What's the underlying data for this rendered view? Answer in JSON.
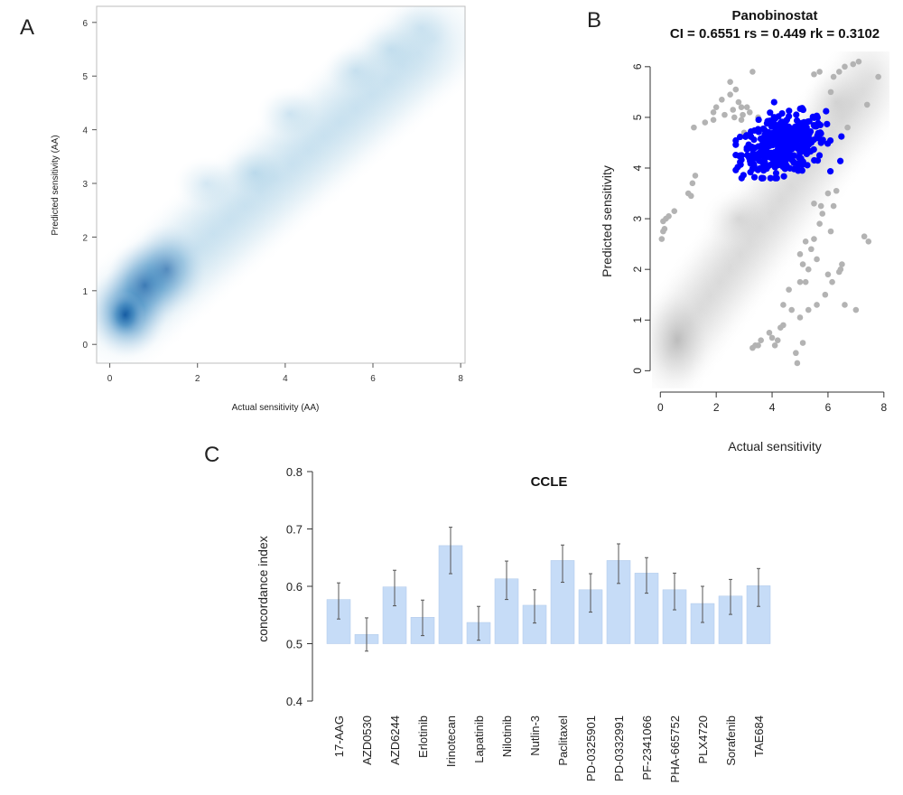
{
  "panels": {
    "a": {
      "letter": "A"
    },
    "b": {
      "letter": "B"
    },
    "c": {
      "letter": "C"
    }
  },
  "colors": {
    "density_blue": "#08519c",
    "blue_points": "#0000ff",
    "grey_points": "#b3b3b3",
    "bar_fill": "#c6dcf7",
    "error_bar": "#555555"
  },
  "chart_data": [
    {
      "id": "A",
      "type": "heatmap",
      "title": "",
      "xlabel": "Actual sensitivity (AA)",
      "ylabel": "Predicted sensitivity (AA)",
      "xlim": [
        -0.3,
        8.1
      ],
      "ylim": [
        -0.35,
        6.3
      ],
      "x_ticks": [
        0,
        2,
        4,
        6,
        8
      ],
      "y_ticks": [
        0,
        1,
        2,
        3,
        4,
        5,
        6
      ],
      "density_centers": [
        {
          "x": 0.4,
          "y": 0.6,
          "weight": 1.0
        },
        {
          "x": 0.8,
          "y": 1.1,
          "weight": 0.75
        },
        {
          "x": 1.3,
          "y": 1.4,
          "weight": 0.5
        },
        {
          "x": 2.2,
          "y": 3.0,
          "weight": 0.3
        },
        {
          "x": 3.3,
          "y": 3.2,
          "weight": 0.35
        },
        {
          "x": 4.1,
          "y": 4.3,
          "weight": 0.35
        },
        {
          "x": 5.6,
          "y": 5.1,
          "weight": 0.3
        },
        {
          "x": 6.4,
          "y": 5.5,
          "weight": 0.25
        },
        {
          "x": 7.1,
          "y": 5.9,
          "weight": 0.18
        }
      ]
    },
    {
      "id": "B",
      "type": "scatter",
      "title": "Panobinostat",
      "subtitle": "CI = 0.6551 rs = 0.449 rk = 0.3102",
      "xlabel": "Actual sensitivity",
      "ylabel": "Predicted sensitivity",
      "xlim": [
        -0.3,
        8.2
      ],
      "ylim": [
        -0.35,
        6.3
      ],
      "x_ticks": [
        0,
        2,
        4,
        6,
        8
      ],
      "y_ticks": [
        0,
        1,
        2,
        3,
        4,
        5,
        6
      ],
      "highlight_cluster": {
        "x_mean": 4.4,
        "y_mean": 4.45,
        "x_sd": 0.75,
        "y_sd": 0.28,
        "count": 420
      },
      "grey_points": [
        [
          0.05,
          2.6
        ],
        [
          0.1,
          2.75
        ],
        [
          0.15,
          2.8
        ],
        [
          0.2,
          3.0
        ],
        [
          0.3,
          3.05
        ],
        [
          0.5,
          3.15
        ],
        [
          0.1,
          2.95
        ],
        [
          1.0,
          3.5
        ],
        [
          1.15,
          3.7
        ],
        [
          1.25,
          3.85
        ],
        [
          1.1,
          3.45
        ],
        [
          1.2,
          4.8
        ],
        [
          1.6,
          4.9
        ],
        [
          1.9,
          4.95
        ],
        [
          1.9,
          5.1
        ],
        [
          2.0,
          5.2
        ],
        [
          2.2,
          5.35
        ],
        [
          2.3,
          5.05
        ],
        [
          2.5,
          5.45
        ],
        [
          2.6,
          5.15
        ],
        [
          2.65,
          5.0
        ],
        [
          2.8,
          5.3
        ],
        [
          2.9,
          5.2
        ],
        [
          2.95,
          5.05
        ],
        [
          2.5,
          5.7
        ],
        [
          2.7,
          5.55
        ],
        [
          3.1,
          5.2
        ],
        [
          3.2,
          5.1
        ],
        [
          3.5,
          5.0
        ],
        [
          3.3,
          5.9
        ],
        [
          2.9,
          4.95
        ],
        [
          3.0,
          4.7
        ],
        [
          5.5,
          5.85
        ],
        [
          5.7,
          5.9
        ],
        [
          6.4,
          5.9
        ],
        [
          6.6,
          6.0
        ],
        [
          6.9,
          6.05
        ],
        [
          7.1,
          6.1
        ],
        [
          6.2,
          5.8
        ],
        [
          7.8,
          5.8
        ],
        [
          7.4,
          5.25
        ],
        [
          6.7,
          4.8
        ],
        [
          6.1,
          5.5
        ],
        [
          3.3,
          0.45
        ],
        [
          3.5,
          0.5
        ],
        [
          3.6,
          0.6
        ],
        [
          3.4,
          0.5
        ],
        [
          4.1,
          0.5
        ],
        [
          4.2,
          0.6
        ],
        [
          4.3,
          0.85
        ],
        [
          3.9,
          0.75
        ],
        [
          4.4,
          0.9
        ],
        [
          4.0,
          0.65
        ],
        [
          5.0,
          1.05
        ],
        [
          4.4,
          1.3
        ],
        [
          4.6,
          1.6
        ],
        [
          4.7,
          1.2
        ],
        [
          5.0,
          1.75
        ],
        [
          5.2,
          1.75
        ],
        [
          5.3,
          2.0
        ],
        [
          5.1,
          2.1
        ],
        [
          5.0,
          2.3
        ],
        [
          5.2,
          2.55
        ],
        [
          5.4,
          2.4
        ],
        [
          5.5,
          2.6
        ],
        [
          5.7,
          2.9
        ],
        [
          5.8,
          3.1
        ],
        [
          5.5,
          3.3
        ],
        [
          5.75,
          3.25
        ],
        [
          6.0,
          3.5
        ],
        [
          6.1,
          2.75
        ],
        [
          6.2,
          3.25
        ],
        [
          6.3,
          3.55
        ],
        [
          5.6,
          1.3
        ],
        [
          5.9,
          1.5
        ],
        [
          6.0,
          1.9
        ],
        [
          6.4,
          1.95
        ],
        [
          6.5,
          2.1
        ],
        [
          6.6,
          1.3
        ],
        [
          7.0,
          1.2
        ],
        [
          7.3,
          2.65
        ],
        [
          7.45,
          2.55
        ],
        [
          5.1,
          0.55
        ],
        [
          4.85,
          0.35
        ],
        [
          5.3,
          1.2
        ],
        [
          6.45,
          2.0
        ],
        [
          6.15,
          1.75
        ],
        [
          4.9,
          0.15
        ],
        [
          5.6,
          2.2
        ]
      ]
    },
    {
      "id": "C",
      "type": "bar",
      "title": "CCLE",
      "xlabel": "",
      "ylabel": "concordance index",
      "ylim": [
        0.4,
        0.8
      ],
      "baseline": 0.5,
      "y_ticks": [
        0.4,
        0.5,
        0.6,
        0.7,
        0.8
      ],
      "categories": [
        "17-AAG",
        "AZD0530",
        "AZD6244",
        "Erlotinib",
        "Irinotecan",
        "Lapatinib",
        "Nilotinib",
        "Nutlin-3",
        "Paclitaxel",
        "PD-0325901",
        "PD-0332991",
        "PF-2341066",
        "PHA-665752",
        "PLX4720",
        "Sorafenib",
        "TAE684"
      ],
      "values": [
        0.577,
        0.516,
        0.599,
        0.546,
        0.671,
        0.537,
        0.613,
        0.567,
        0.645,
        0.594,
        0.645,
        0.623,
        0.594,
        0.57,
        0.583,
        0.601
      ],
      "error_low": [
        0.543,
        0.487,
        0.566,
        0.514,
        0.622,
        0.506,
        0.577,
        0.536,
        0.607,
        0.555,
        0.605,
        0.588,
        0.559,
        0.537,
        0.551,
        0.565
      ],
      "error_high": [
        0.606,
        0.545,
        0.628,
        0.576,
        0.703,
        0.565,
        0.644,
        0.594,
        0.672,
        0.622,
        0.674,
        0.65,
        0.623,
        0.6,
        0.612,
        0.631
      ]
    }
  ]
}
